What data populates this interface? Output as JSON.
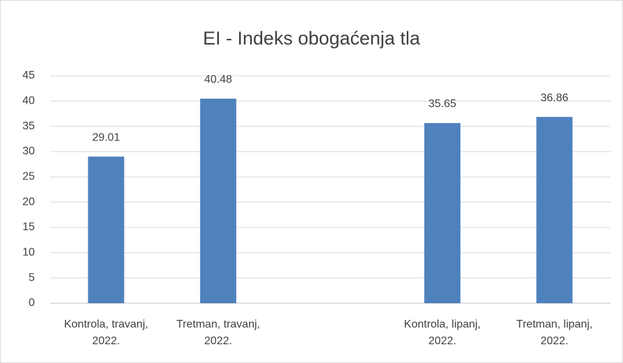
{
  "chart_data": {
    "type": "bar",
    "title": "EI - Indeks obogaćenja tla",
    "categories": [
      "Kontrola, travanj, 2022.",
      "Tretman, travanj, 2022.",
      null,
      "Kontrola, lipanj, 2022.",
      "Tretman, lipanj, 2022."
    ],
    "values": [
      29.01,
      40.48,
      null,
      35.65,
      36.86
    ],
    "color": "#4f81bd",
    "ylim": [
      0,
      45
    ],
    "yticks": [
      0,
      5,
      10,
      15,
      20,
      25,
      30,
      35,
      40,
      45
    ],
    "grid": true
  }
}
